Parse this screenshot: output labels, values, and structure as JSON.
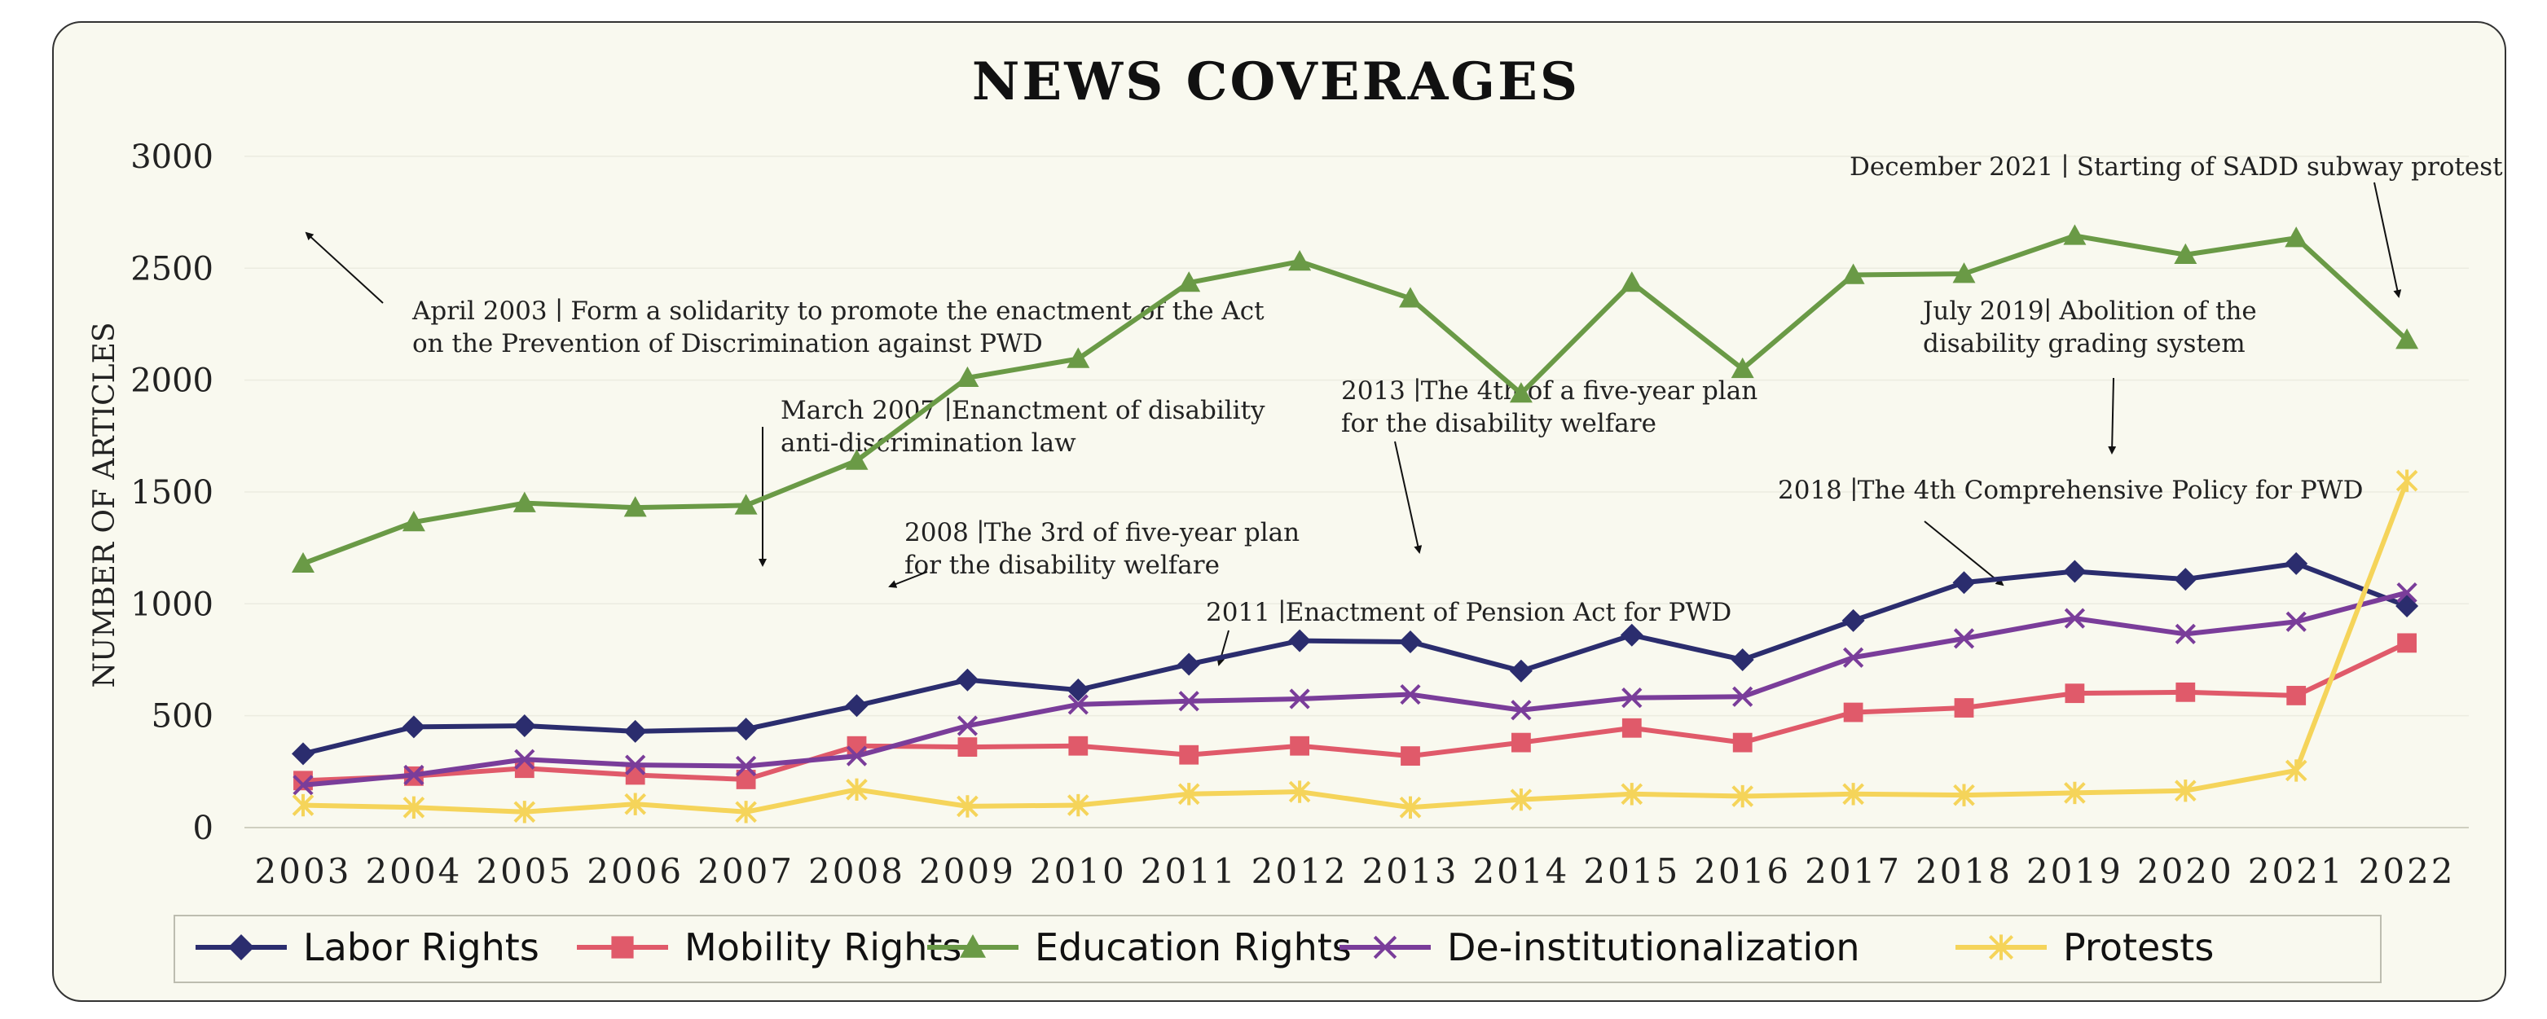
{
  "chart_data": {
    "type": "line",
    "title": "NEWS COVERAGES",
    "xlabel": "",
    "ylabel": "NUMBER OF ARTICLES",
    "ylim": [
      0,
      3000
    ],
    "yticks": [
      0,
      500,
      1000,
      1500,
      2000,
      2500,
      3000
    ],
    "categories": [
      "2003",
      "2004",
      "2005",
      "2006",
      "2007",
      "2008",
      "2009",
      "2010",
      "2011",
      "2012",
      "2013",
      "2014",
      "2015",
      "2016",
      "2017",
      "2018",
      "2019",
      "2020",
      "2021",
      "2022"
    ],
    "grid": "horizontal",
    "legend_position": "bottom",
    "series": [
      {
        "name": "Labor Rights",
        "color": "#2b2d6e",
        "marker": "diamond",
        "values": [
          330,
          450,
          455,
          430,
          440,
          545,
          660,
          615,
          730,
          835,
          830,
          700,
          860,
          750,
          925,
          1095,
          1145,
          1110,
          1180,
          990
        ]
      },
      {
        "name": "Mobility Rights",
        "color": "#e05a6a",
        "marker": "square",
        "values": [
          210,
          230,
          265,
          235,
          215,
          365,
          360,
          365,
          325,
          365,
          320,
          380,
          445,
          380,
          515,
          535,
          600,
          605,
          590,
          825
        ]
      },
      {
        "name": "Education Rights",
        "color": "#6a9a46",
        "marker": "triangle",
        "values": [
          1180,
          1365,
          1450,
          1430,
          1440,
          1640,
          2010,
          2095,
          2435,
          2530,
          2365,
          1940,
          2435,
          2050,
          2470,
          2475,
          2645,
          2560,
          2635,
          2180
        ]
      },
      {
        "name": "De-institutionalization",
        "color": "#7a3d9a",
        "marker": "x",
        "values": [
          190,
          235,
          305,
          280,
          275,
          320,
          455,
          550,
          565,
          575,
          595,
          525,
          580,
          585,
          760,
          845,
          935,
          865,
          920,
          1050
        ]
      },
      {
        "name": "Protests",
        "color": "#f5d45a",
        "marker": "asterisk",
        "values": [
          100,
          90,
          70,
          105,
          70,
          170,
          95,
          100,
          150,
          160,
          90,
          125,
          150,
          140,
          150,
          145,
          155,
          165,
          255,
          1550
        ]
      }
    ],
    "annotations": [
      {
        "lines": [
          "April 2003 ∣ Form a solidarity to promote the enactment of the Act",
          "on the Prevention of Discrimination against PWD"
        ]
      },
      {
        "lines": [
          "March 2007 ∣Enanctment of disability",
          "anti-discrimination law"
        ]
      },
      {
        "lines": [
          "2008 ∣The 3rd of five-year plan",
          "for the disability welfare"
        ]
      },
      {
        "lines": [
          "2011 ∣Enactment of Pension Act for PWD"
        ]
      },
      {
        "lines": [
          "2013 ∣The 4th of a five-year plan",
          "for the disability welfare"
        ]
      },
      {
        "lines": [
          "2018 ∣The 4th Comprehensive Policy for PWD"
        ]
      },
      {
        "lines": [
          "July 2019∣ Abolition of the",
          "disability grading system"
        ]
      },
      {
        "lines": [
          "December 2021 ∣ Starting of SADD subway protest"
        ]
      }
    ]
  }
}
